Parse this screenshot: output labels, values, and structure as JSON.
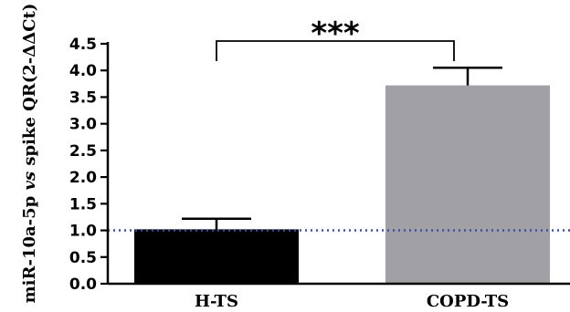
{
  "chart_data": {
    "type": "bar",
    "title": "",
    "xlabel": "",
    "ylabel": "miR-10a-5p vs spike QR(2-ΔΔCt)",
    "ylabel_parts": [
      "miR-10a-5p ",
      "vs",
      " spike QR(2-ΔΔCt)"
    ],
    "categories": [
      "H-TS",
      "COPD-TS"
    ],
    "values": [
      1.02,
      3.72
    ],
    "error_upper": [
      0.2,
      0.33
    ],
    "bar_colors": [
      "#000000",
      "#a0a0a5"
    ],
    "ylim": [
      0,
      4.5
    ],
    "yticks": [
      "0.0",
      "0.5",
      "1.0",
      "1.5",
      "2.0",
      "2.5",
      "3.0",
      "3.5",
      "4.0",
      "4.5"
    ],
    "reference_line": {
      "y": 1.0,
      "style": "dotted",
      "color": "#3a4ea8"
    },
    "significance": {
      "between": [
        "H-TS",
        "COPD-TS"
      ],
      "label": "***"
    },
    "grid": false
  }
}
